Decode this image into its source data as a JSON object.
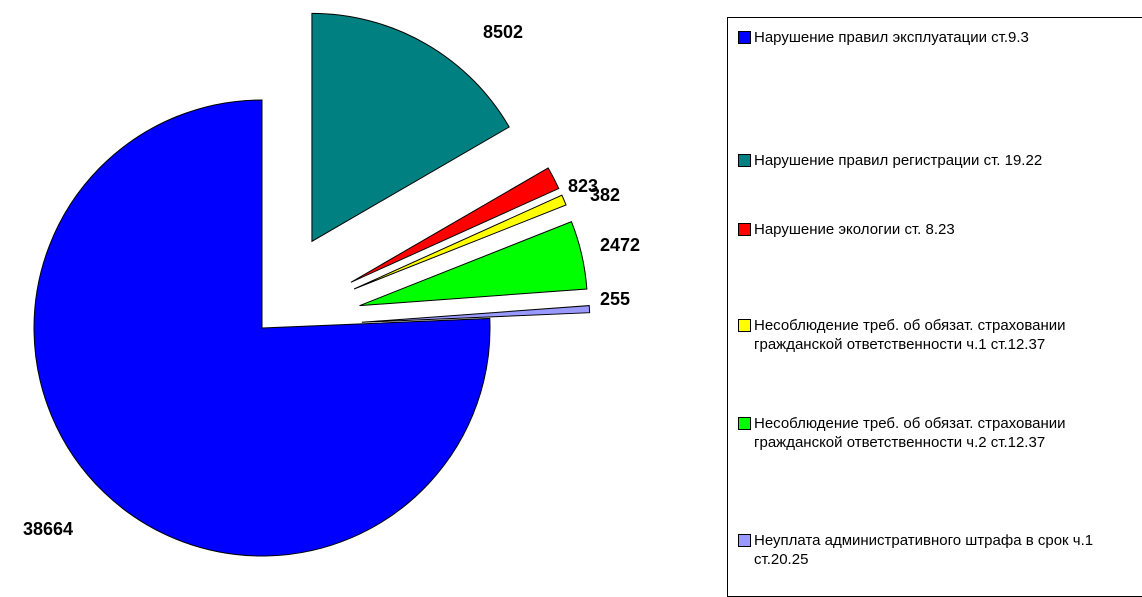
{
  "chart_data": {
    "type": "pie",
    "series": [
      {
        "name": "Нарушение правил эксплуатации ст.9.3",
        "color": "#0000ff",
        "values": [
          38664
        ]
      },
      {
        "name": "Нарушение правил регистрации ст. 19.22",
        "color": "#008080",
        "values": [
          8502
        ]
      },
      {
        "name": "Нарушение экологии ст. 8.23",
        "color": "#ff0000",
        "values": [
          823
        ]
      },
      {
        "name": "Несоблюдение треб. об обязат. страховании гражданской ответственности ч.1 ст.12.37",
        "color": "#ffff00",
        "values": [
          382
        ]
      },
      {
        "name": "Несоблюдение треб. об обязат. страховании гражданской ответственности ч.2 ст.12.37",
        "color": "#00ff00",
        "values": [
          2472
        ]
      },
      {
        "name": "Неуплата административного штрафа в срок ч.1 ст.20.25",
        "color": "#9999ff",
        "values": [
          255
        ]
      }
    ],
    "legend": "right"
  }
}
